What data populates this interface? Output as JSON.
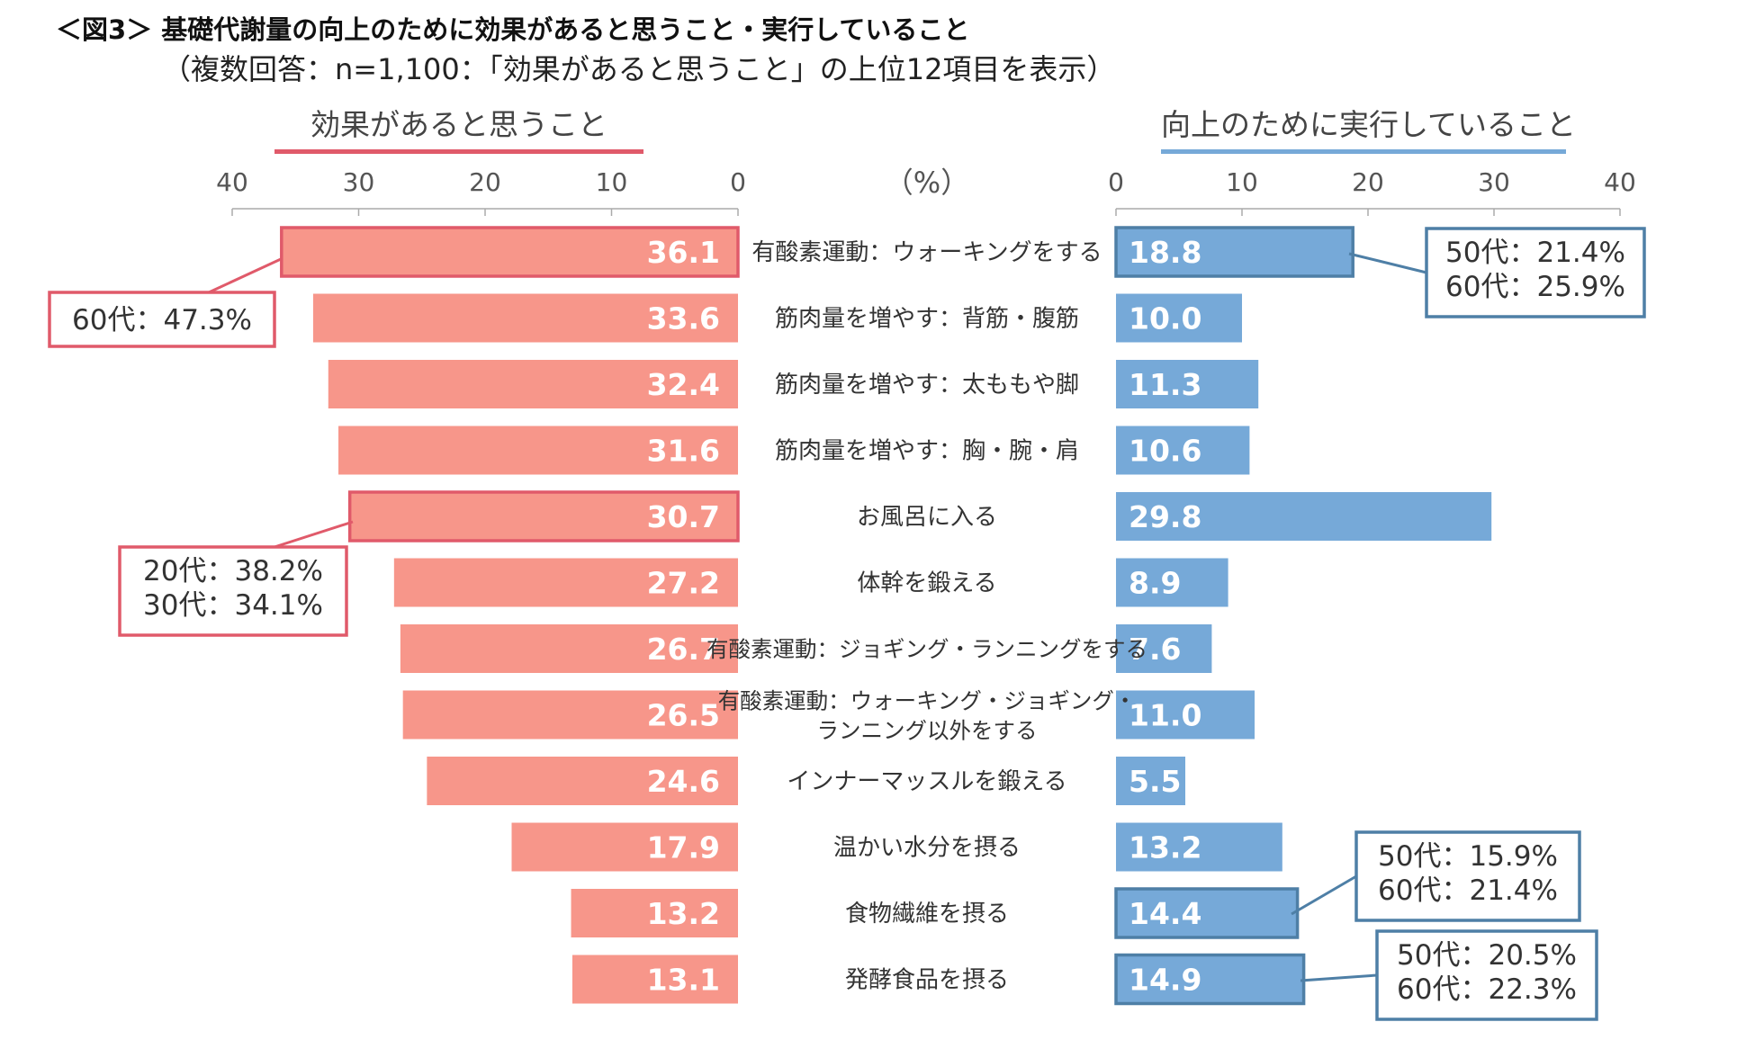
{
  "title": "＜図3＞ 基礎代謝量の向上のために効果があると思うこと・実行していること",
  "subtitle": "（複数回答：n=1,100：「効果があると思うこと」の上位12項目を表示）",
  "left_header": "効果があると思うこと",
  "right_header": "向上のために実行していること",
  "unit_label": "（%）",
  "colors": {
    "left_bar": "#F7968A",
    "left_accent": "#E05A6A",
    "right_bar": "#76A9D8",
    "right_accent": "#4E7FA6"
  },
  "chart_data": {
    "type": "bar",
    "orientation": "horizontal-butterfly",
    "xlim": [
      0,
      40
    ],
    "ticks": [
      0,
      10,
      20,
      30,
      40
    ],
    "categories": [
      "有酸素運動：ウォーキングをする",
      "筋肉量を増やす：背筋・腹筋",
      "筋肉量を増やす：太ももや脚",
      "筋肉量を増やす：胸・腕・肩",
      "お風呂に入る",
      "体幹を鍛える",
      "有酸素運動：ジョギング・ランニングをする",
      "有酸素運動：ウォーキング・ジョギング・|ランニング以外をする",
      "インナーマッスルを鍛える",
      "温かい水分を摂る",
      "食物繊維を摂る",
      "発酵食品を摂る"
    ],
    "series": [
      {
        "name": "効果があると思うこと",
        "side": "left",
        "values": [
          36.1,
          33.6,
          32.4,
          31.6,
          30.7,
          27.2,
          26.7,
          26.5,
          24.6,
          17.9,
          13.2,
          13.1
        ],
        "highlight": [
          0,
          4
        ]
      },
      {
        "name": "向上のために実行していること",
        "side": "right",
        "values": [
          18.8,
          10.0,
          11.3,
          10.6,
          29.8,
          8.9,
          7.6,
          11.0,
          5.5,
          13.2,
          14.4,
          14.9
        ],
        "highlight": [
          0,
          10,
          11
        ]
      }
    ],
    "callouts": [
      {
        "side": "left",
        "row": 0,
        "lines": [
          "60代：47.3%"
        ]
      },
      {
        "side": "left",
        "row": 4,
        "lines": [
          "20代：38.2%",
          "30代：34.1%"
        ]
      },
      {
        "side": "right",
        "row": 0,
        "lines": [
          "50代：21.4%",
          "60代：25.9%"
        ]
      },
      {
        "side": "right",
        "row": 10,
        "lines": [
          "50代：15.9%",
          "60代：21.4%"
        ]
      },
      {
        "side": "right",
        "row": 11,
        "lines": [
          "50代：20.5%",
          "60代：22.3%"
        ]
      }
    ]
  }
}
